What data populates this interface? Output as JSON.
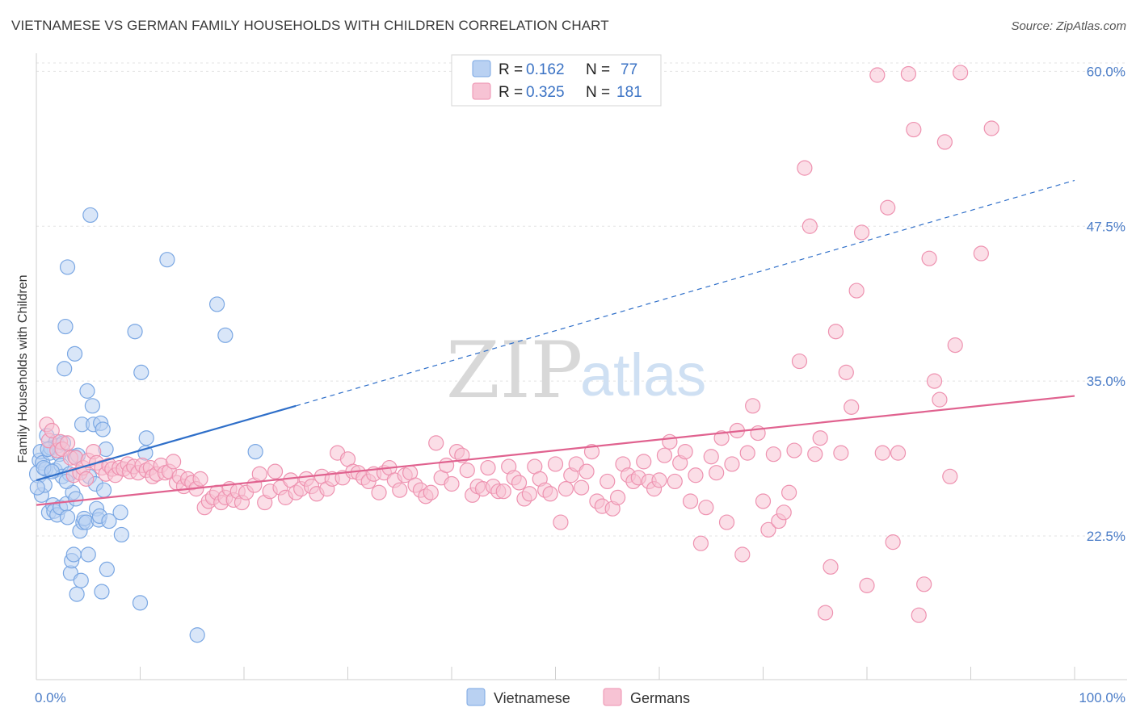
{
  "header": {
    "title": "VIETNAMESE VS GERMAN FAMILY HOUSEHOLDS WITH CHILDREN CORRELATION CHART",
    "source": "Source: ZipAtlas.com"
  },
  "watermark": {
    "zip": "ZIP",
    "atlas": "atlas"
  },
  "chart_data": {
    "type": "scatter",
    "ylabel": "Family Households with Children",
    "xlabel": "",
    "xlim": [
      0,
      100
    ],
    "ylim": [
      10.9,
      61.2
    ],
    "x_tick_labels": [
      {
        "value": 0,
        "label": "0.0%"
      },
      {
        "value": 100,
        "label": "100.0%"
      }
    ],
    "y_ticks": [
      {
        "value": 22.5,
        "label": "22.5%"
      },
      {
        "value": 35.0,
        "label": "35.0%"
      },
      {
        "value": 47.5,
        "label": "47.5%"
      },
      {
        "value": 60.0,
        "label": "60.0%"
      }
    ],
    "grid": "horizontal-dashed",
    "legend": {
      "position": "top-center",
      "entries": [
        {
          "series": "Vietnamese",
          "r_label": "R =",
          "r_value": "0.162",
          "n_label": "N =",
          "n_value": "77"
        },
        {
          "series": "Germans",
          "r_label": "R =",
          "r_value": "0.325",
          "n_label": "N =",
          "n_value": "181"
        }
      ]
    },
    "series": [
      {
        "name": "Vietnamese",
        "color": "#7aa7e3",
        "fill": "#b9d1f2",
        "trend_color": "#2f6fc9",
        "trend": {
          "x0": 0,
          "y0": 27.0,
          "x1_solid": 25,
          "y1_solid": 33.0,
          "x_end": 100,
          "y_end": 51.2
        },
        "points": [
          [
            0.2,
            27.5
          ],
          [
            0.3,
            28.6
          ],
          [
            0.4,
            29.3
          ],
          [
            0.5,
            25.8
          ],
          [
            0.6,
            28.4
          ],
          [
            0.8,
            26.6
          ],
          [
            0.9,
            27.9
          ],
          [
            1.0,
            30.6
          ],
          [
            1.2,
            24.4
          ],
          [
            1.3,
            29.2
          ],
          [
            1.4,
            29.6
          ],
          [
            1.6,
            25.0
          ],
          [
            1.7,
            24.5
          ],
          [
            1.8,
            27.8
          ],
          [
            1.9,
            30.1
          ],
          [
            2.0,
            24.2
          ],
          [
            2.1,
            29.8
          ],
          [
            2.2,
            29.1
          ],
          [
            2.3,
            24.8
          ],
          [
            2.4,
            28.2
          ],
          [
            2.5,
            27.3
          ],
          [
            2.6,
            30.0
          ],
          [
            2.7,
            36.0
          ],
          [
            2.8,
            39.4
          ],
          [
            2.9,
            25.1
          ],
          [
            3.0,
            24.0
          ],
          [
            3.0,
            44.2
          ],
          [
            3.2,
            27.5
          ],
          [
            3.3,
            19.5
          ],
          [
            3.4,
            20.5
          ],
          [
            3.5,
            26.0
          ],
          [
            3.6,
            21.0
          ],
          [
            3.7,
            28.9
          ],
          [
            3.7,
            37.2
          ],
          [
            3.8,
            25.5
          ],
          [
            3.9,
            17.8
          ],
          [
            4.0,
            29.0
          ],
          [
            4.2,
            22.9
          ],
          [
            4.3,
            18.9
          ],
          [
            4.4,
            31.5
          ],
          [
            4.5,
            23.6
          ],
          [
            4.6,
            23.9
          ],
          [
            4.8,
            23.6
          ],
          [
            4.9,
            34.2
          ],
          [
            5.0,
            21.0
          ],
          [
            5.1,
            27.3
          ],
          [
            5.2,
            48.4
          ],
          [
            5.4,
            33.0
          ],
          [
            5.5,
            31.5
          ],
          [
            5.7,
            26.7
          ],
          [
            5.8,
            24.7
          ],
          [
            6.0,
            23.8
          ],
          [
            6.1,
            24.1
          ],
          [
            6.2,
            31.6
          ],
          [
            6.3,
            18.0
          ],
          [
            6.4,
            31.1
          ],
          [
            6.5,
            26.2
          ],
          [
            6.7,
            29.5
          ],
          [
            6.8,
            19.8
          ],
          [
            7.0,
            23.7
          ],
          [
            8.1,
            24.4
          ],
          [
            8.2,
            22.6
          ],
          [
            9.5,
            39.0
          ],
          [
            10.0,
            17.1
          ],
          [
            10.1,
            35.7
          ],
          [
            10.5,
            29.2
          ],
          [
            10.6,
            30.4
          ],
          [
            12.6,
            44.8
          ],
          [
            15.5,
            14.5
          ],
          [
            17.4,
            41.2
          ],
          [
            18.2,
            38.7
          ],
          [
            21.1,
            29.3
          ],
          [
            0.1,
            26.4
          ],
          [
            1.1,
            29.5
          ],
          [
            2.9,
            26.9
          ],
          [
            0.7,
            28.0
          ],
          [
            1.5,
            27.7
          ]
        ]
      },
      {
        "name": "Germans",
        "color": "#ee92b0",
        "fill": "#f7c3d4",
        "trend_color": "#e0628f",
        "trend": {
          "x0": 0,
          "y0": 25.0,
          "x1_solid": 100,
          "y1_solid": 33.8,
          "x_end": 100,
          "y_end": 33.8
        },
        "points": [
          [
            1.0,
            31.5
          ],
          [
            1.2,
            30.2
          ],
          [
            1.5,
            31.0
          ],
          [
            2.0,
            29.4
          ],
          [
            2.3,
            30.1
          ],
          [
            2.5,
            29.5
          ],
          [
            3.0,
            30.0
          ],
          [
            3.3,
            28.8
          ],
          [
            3.6,
            27.4
          ],
          [
            3.8,
            28.8
          ],
          [
            4.2,
            27.6
          ],
          [
            4.5,
            28.0
          ],
          [
            4.8,
            27.1
          ],
          [
            5.0,
            28.6
          ],
          [
            5.5,
            29.3
          ],
          [
            5.8,
            28.4
          ],
          [
            6.3,
            28.0
          ],
          [
            6.7,
            27.5
          ],
          [
            7.0,
            28.2
          ],
          [
            7.3,
            27.9
          ],
          [
            7.6,
            27.4
          ],
          [
            8.0,
            28.0
          ],
          [
            8.4,
            27.9
          ],
          [
            8.8,
            28.3
          ],
          [
            9.0,
            27.7
          ],
          [
            9.4,
            28.1
          ],
          [
            9.8,
            27.6
          ],
          [
            10.2,
            28.2
          ],
          [
            10.6,
            27.8
          ],
          [
            11.0,
            28.0
          ],
          [
            11.2,
            27.3
          ],
          [
            11.6,
            27.5
          ],
          [
            12.0,
            28.2
          ],
          [
            12.4,
            27.6
          ],
          [
            12.8,
            27.7
          ],
          [
            13.2,
            28.5
          ],
          [
            13.5,
            26.8
          ],
          [
            13.8,
            27.3
          ],
          [
            14.2,
            26.5
          ],
          [
            14.6,
            27.1
          ],
          [
            15.0,
            26.8
          ],
          [
            15.4,
            26.3
          ],
          [
            15.8,
            27.1
          ],
          [
            16.2,
            24.8
          ],
          [
            16.6,
            25.3
          ],
          [
            17.0,
            25.6
          ],
          [
            17.4,
            26.0
          ],
          [
            17.8,
            25.2
          ],
          [
            18.2,
            25.6
          ],
          [
            18.6,
            26.3
          ],
          [
            19.0,
            25.4
          ],
          [
            19.4,
            26.1
          ],
          [
            19.8,
            25.2
          ],
          [
            20.2,
            26.0
          ],
          [
            21.0,
            26.6
          ],
          [
            21.5,
            27.5
          ],
          [
            22.0,
            25.2
          ],
          [
            22.5,
            26.1
          ],
          [
            23.0,
            27.7
          ],
          [
            23.5,
            26.4
          ],
          [
            24.0,
            25.6
          ],
          [
            24.5,
            27.0
          ],
          [
            25.0,
            26.0
          ],
          [
            25.5,
            26.3
          ],
          [
            26.0,
            27.1
          ],
          [
            26.5,
            26.5
          ],
          [
            27.0,
            25.9
          ],
          [
            27.5,
            27.3
          ],
          [
            28.0,
            26.3
          ],
          [
            28.5,
            27.1
          ],
          [
            29.0,
            29.2
          ],
          [
            29.5,
            27.2
          ],
          [
            30.0,
            28.7
          ],
          [
            30.5,
            27.7
          ],
          [
            31.0,
            27.6
          ],
          [
            31.5,
            27.2
          ],
          [
            32.0,
            26.9
          ],
          [
            32.5,
            27.5
          ],
          [
            33.0,
            26.0
          ],
          [
            33.5,
            27.6
          ],
          [
            34.0,
            28.0
          ],
          [
            34.5,
            27.0
          ],
          [
            35.0,
            26.2
          ],
          [
            35.5,
            27.4
          ],
          [
            36.0,
            27.6
          ],
          [
            36.5,
            26.6
          ],
          [
            37.0,
            26.2
          ],
          [
            37.5,
            25.7
          ],
          [
            38.0,
            26.0
          ],
          [
            38.5,
            30.0
          ],
          [
            39.0,
            27.2
          ],
          [
            39.5,
            28.2
          ],
          [
            40.0,
            26.7
          ],
          [
            40.5,
            29.3
          ],
          [
            41.0,
            29.0
          ],
          [
            41.5,
            27.8
          ],
          [
            42.0,
            25.8
          ],
          [
            42.5,
            26.5
          ],
          [
            43.0,
            26.3
          ],
          [
            43.5,
            28.0
          ],
          [
            44.0,
            26.5
          ],
          [
            44.5,
            26.1
          ],
          [
            45.0,
            26.1
          ],
          [
            45.5,
            28.1
          ],
          [
            46.0,
            27.2
          ],
          [
            46.5,
            26.8
          ],
          [
            47.0,
            25.5
          ],
          [
            47.5,
            25.9
          ],
          [
            48.0,
            28.1
          ],
          [
            48.5,
            27.1
          ],
          [
            49.0,
            26.2
          ],
          [
            49.5,
            25.9
          ],
          [
            50.0,
            28.3
          ],
          [
            50.5,
            23.6
          ],
          [
            51.0,
            26.3
          ],
          [
            51.5,
            27.4
          ],
          [
            52.0,
            28.3
          ],
          [
            52.5,
            26.4
          ],
          [
            53.0,
            27.7
          ],
          [
            53.5,
            29.3
          ],
          [
            54.0,
            25.3
          ],
          [
            54.5,
            24.9
          ],
          [
            55.0,
            26.9
          ],
          [
            55.5,
            24.7
          ],
          [
            56.0,
            25.6
          ],
          [
            56.5,
            28.3
          ],
          [
            57.0,
            27.4
          ],
          [
            57.5,
            26.9
          ],
          [
            58.0,
            27.2
          ],
          [
            58.5,
            28.5
          ],
          [
            59.0,
            26.9
          ],
          [
            59.5,
            26.3
          ],
          [
            60.0,
            27.0
          ],
          [
            60.5,
            29.0
          ],
          [
            61.0,
            30.1
          ],
          [
            61.5,
            26.9
          ],
          [
            62.0,
            28.4
          ],
          [
            62.5,
            29.3
          ],
          [
            63.0,
            25.3
          ],
          [
            63.5,
            27.4
          ],
          [
            64.0,
            21.9
          ],
          [
            64.5,
            24.8
          ],
          [
            65.0,
            28.9
          ],
          [
            65.5,
            27.6
          ],
          [
            66.0,
            30.4
          ],
          [
            66.5,
            23.6
          ],
          [
            67.0,
            28.3
          ],
          [
            67.5,
            31.0
          ],
          [
            68.0,
            21.0
          ],
          [
            68.5,
            29.2
          ],
          [
            69.0,
            33.0
          ],
          [
            69.5,
            30.8
          ],
          [
            70.0,
            25.3
          ],
          [
            70.5,
            23.0
          ],
          [
            71.0,
            29.1
          ],
          [
            71.5,
            23.7
          ],
          [
            72.0,
            24.4
          ],
          [
            72.5,
            26.0
          ],
          [
            73.0,
            29.4
          ],
          [
            73.5,
            36.6
          ],
          [
            74.0,
            52.2
          ],
          [
            74.5,
            47.5
          ],
          [
            75.0,
            29.1
          ],
          [
            75.5,
            30.4
          ],
          [
            76.0,
            16.3
          ],
          [
            76.5,
            20.0
          ],
          [
            77.0,
            39.0
          ],
          [
            77.5,
            29.2
          ],
          [
            78.0,
            35.7
          ],
          [
            78.5,
            32.9
          ],
          [
            79.0,
            42.3
          ],
          [
            79.5,
            47.0
          ],
          [
            80.0,
            18.5
          ],
          [
            81.0,
            59.7
          ],
          [
            81.5,
            29.2
          ],
          [
            82.0,
            49.0
          ],
          [
            82.5,
            22.0
          ],
          [
            83.0,
            29.2
          ],
          [
            84.0,
            59.8
          ],
          [
            84.5,
            55.3
          ],
          [
            85.0,
            16.1
          ],
          [
            85.5,
            18.6
          ],
          [
            86.0,
            44.9
          ],
          [
            86.5,
            35.0
          ],
          [
            87.0,
            33.5
          ],
          [
            87.5,
            54.3
          ],
          [
            88.0,
            27.3
          ],
          [
            88.5,
            37.9
          ],
          [
            89.0,
            59.9
          ],
          [
            91.0,
            45.3
          ],
          [
            92.0,
            55.4
          ]
        ]
      }
    ]
  },
  "bottom_legend": [
    {
      "label": "Vietnamese",
      "color": "#b9d1f2",
      "stroke": "#7aa7e3"
    },
    {
      "label": "Germans",
      "color": "#f7c3d4",
      "stroke": "#ee92b0"
    }
  ]
}
